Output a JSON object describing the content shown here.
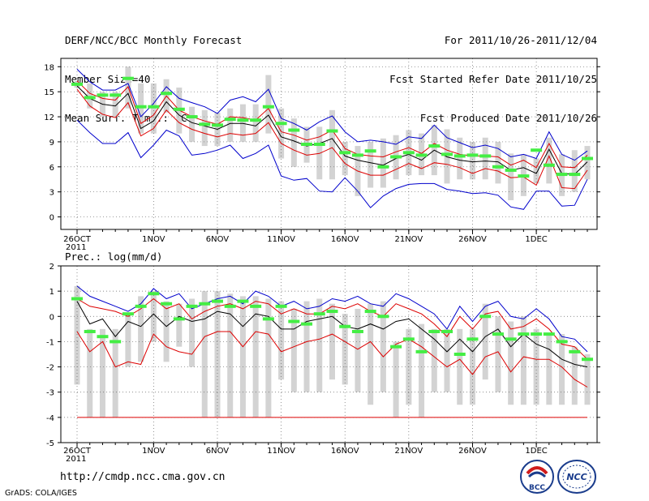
{
  "header": {
    "title": "DERF/NCC/BCC Monthly Forecast",
    "member_size": "Member Size=40",
    "variable": "Mean Surf. Temp.: °C",
    "period": "For 2011/10/26-2011/12/04",
    "fcst_started": "Fcst Started Refer Date 2011/10/25",
    "fcst_produced": "Fcst Produced Date 2011/10/26"
  },
  "footer": {
    "url": "http://cmdp.ncc.cma.gov.cn",
    "credit": "GrADS: COLA/IGES",
    "logo_bcc": "BCC",
    "logo_ncc": "NCC"
  },
  "colors": {
    "box": "#d3d3d3",
    "mean_marker": "#44ee44",
    "max_line": "#0000cc",
    "min_line": "#dd0000",
    "ensemble_line": "#000000"
  },
  "chart_data": [
    {
      "type": "line",
      "title": "Mean Surf. Temp.: °C",
      "days": 40,
      "xticks": [
        "26OCT 2011",
        "1NOV",
        "6NOV",
        "11NOV",
        "16NOV",
        "21NOV",
        "26NOV",
        "1DEC"
      ],
      "xtick_days": [
        0,
        6,
        11,
        16,
        21,
        26,
        31,
        36
      ],
      "ylim": [
        -1.5,
        19
      ],
      "yticks": [
        0,
        3,
        6,
        9,
        12,
        15,
        18
      ],
      "series": [
        {
          "name": "max",
          "values": [
            17.7,
            16.2,
            15.2,
            15.2,
            16.0,
            12.0,
            13.6,
            15.6,
            14.2,
            13.7,
            13.2,
            12.4,
            14.0,
            14.4,
            13.8,
            15.3,
            11.8,
            11.2,
            10.4,
            11.4,
            12.1,
            10.2,
            9.0,
            9.2,
            9.0,
            8.7,
            9.6,
            9.4,
            11.0,
            9.5,
            8.9,
            8.3,
            8.6,
            8.2,
            7.2,
            7.5,
            7.0,
            10.2,
            7.5,
            6.8,
            7.9
          ]
        },
        {
          "name": "upper",
          "values": [
            16.3,
            14.8,
            14.2,
            14.0,
            15.6,
            11.2,
            12.2,
            14.5,
            12.8,
            12.0,
            11.5,
            11.1,
            12.0,
            11.9,
            11.6,
            13.0,
            10.2,
            9.8,
            9.2,
            9.6,
            10.4,
            8.2,
            7.5,
            7.3,
            7.2,
            7.8,
            8.3,
            7.6,
            8.8,
            8.0,
            7.5,
            7.3,
            7.3,
            7.2,
            6.2,
            6.8,
            5.9,
            8.8,
            6.0,
            5.9,
            7.4
          ]
        },
        {
          "name": "ens_mean",
          "values": [
            15.7,
            14.2,
            13.5,
            13.3,
            14.8,
            10.6,
            11.5,
            13.8,
            12.2,
            11.3,
            10.9,
            10.5,
            11.2,
            11.2,
            10.9,
            12.2,
            9.6,
            9.1,
            8.5,
            8.8,
            9.4,
            7.3,
            6.8,
            6.5,
            6.2,
            7.0,
            7.5,
            6.8,
            8.0,
            7.2,
            6.8,
            6.6,
            6.7,
            6.6,
            5.6,
            5.9,
            5.2,
            8.1,
            5.2,
            5.1,
            6.6
          ]
        },
        {
          "name": "lower",
          "values": [
            15.3,
            13.3,
            12.3,
            11.9,
            13.7,
            9.7,
            10.6,
            12.8,
            11.3,
            10.5,
            10.0,
            9.6,
            10.0,
            9.8,
            10.0,
            11.3,
            8.8,
            8.0,
            7.4,
            7.6,
            8.3,
            6.4,
            5.5,
            5.0,
            5.0,
            5.7,
            6.4,
            5.8,
            6.5,
            6.3,
            5.9,
            5.2,
            5.8,
            5.5,
            4.7,
            4.8,
            3.8,
            7.3,
            3.5,
            3.4,
            5.6
          ]
        },
        {
          "name": "min",
          "values": [
            11.6,
            10.1,
            8.8,
            8.8,
            10.1,
            7.1,
            8.6,
            10.4,
            9.7,
            7.4,
            7.6,
            8.0,
            8.6,
            7.0,
            7.6,
            8.6,
            4.9,
            4.4,
            4.6,
            3.1,
            3.0,
            4.7,
            3.1,
            1.1,
            2.5,
            3.4,
            3.9,
            4.0,
            4.0,
            3.3,
            3.1,
            2.8,
            2.9,
            2.6,
            1.2,
            0.9,
            3.1,
            3.1,
            1.3,
            1.4,
            4.5
          ]
        },
        {
          "name": "mean_marker",
          "values": [
            15.9,
            14.3,
            14.6,
            14.6,
            16.6,
            13.2,
            13.2,
            14.8,
            12.9,
            12.0,
            11.1,
            11.0,
            11.7,
            11.6,
            11.6,
            13.2,
            11.2,
            10.4,
            8.7,
            8.7,
            10.3,
            7.7,
            7.4,
            7.9,
            6.0,
            7.2,
            7.7,
            7.4,
            8.5,
            7.5,
            7.3,
            7.4,
            7.3,
            6.0,
            5.6,
            4.9,
            8.0,
            6.2,
            5.1,
            5.1,
            7.0
          ]
        },
        {
          "name": "box_top",
          "values": [
            16.2,
            16.0,
            15.0,
            15.0,
            18.0,
            16.0,
            16.0,
            16.5,
            15.5,
            13.2,
            12.8,
            12.5,
            13.0,
            13.5,
            13.5,
            17.0,
            13.0,
            11.8,
            10.8,
            10.8,
            12.8,
            9.0,
            8.5,
            9.0,
            9.4,
            9.8,
            10.4,
            10.0,
            11.0,
            10.5,
            9.5,
            9.0,
            9.5,
            9.0,
            7.6,
            7.5,
            7.0,
            9.5,
            7.5,
            8.0,
            8.5
          ]
        },
        {
          "name": "box_bottom",
          "values": [
            15.5,
            13.0,
            12.0,
            12.0,
            13.0,
            10.0,
            10.0,
            12.5,
            10.0,
            9.0,
            8.5,
            8.5,
            9.0,
            9.0,
            9.0,
            10.0,
            7.0,
            6.0,
            6.5,
            4.5,
            4.5,
            5.0,
            2.5,
            3.5,
            3.5,
            4.5,
            5.0,
            5.0,
            5.0,
            4.0,
            4.5,
            4.5,
            4.5,
            4.0,
            2.0,
            2.5,
            4.0,
            4.0,
            2.5,
            3.0,
            4.5
          ]
        }
      ]
    },
    {
      "type": "line",
      "title": "Prec.: log(mm/d)",
      "days": 40,
      "xticks": [
        "26OCT 2011",
        "1NOV",
        "6NOV",
        "11NOV",
        "16NOV",
        "21NOV",
        "26NOV",
        "1DEC"
      ],
      "xtick_days": [
        0,
        6,
        11,
        16,
        21,
        26,
        31,
        36
      ],
      "ylim": [
        -5,
        2
      ],
      "yticks": [
        -5,
        -4,
        -3,
        -2,
        -1,
        0,
        1,
        2
      ],
      "series": [
        {
          "name": "max",
          "values": [
            1.2,
            0.8,
            0.6,
            0.4,
            0.2,
            0.5,
            1.1,
            0.7,
            0.9,
            0.3,
            0.5,
            0.7,
            0.8,
            0.5,
            1.0,
            0.8,
            0.4,
            0.6,
            0.3,
            0.4,
            0.7,
            0.6,
            0.8,
            0.5,
            0.4,
            0.9,
            0.7,
            0.4,
            0.1,
            -0.5,
            0.4,
            -0.2,
            0.4,
            0.6,
            0.0,
            -0.1,
            0.3,
            -0.1,
            -0.8,
            -0.9,
            -1.4
          ]
        },
        {
          "name": "upper",
          "values": [
            0.7,
            0.4,
            0.3,
            0.2,
            0.0,
            0.3,
            0.7,
            0.3,
            0.5,
            -0.1,
            0.2,
            0.4,
            0.5,
            0.3,
            0.6,
            0.5,
            0.1,
            0.3,
            0.1,
            0.1,
            0.4,
            0.3,
            0.5,
            0.2,
            0.0,
            0.5,
            0.3,
            0.1,
            -0.3,
            -0.8,
            0.0,
            -0.5,
            0.1,
            0.2,
            -0.5,
            -0.4,
            -0.1,
            -0.5,
            -1.1,
            -1.2,
            -1.7
          ]
        },
        {
          "name": "ens_mean",
          "values": [
            0.6,
            -0.3,
            -0.1,
            -0.8,
            -0.2,
            -0.4,
            0.1,
            -0.4,
            0.0,
            -0.2,
            -0.1,
            0.2,
            0.1,
            -0.4,
            0.1,
            0.0,
            -0.5,
            -0.5,
            -0.2,
            -0.1,
            0.0,
            -0.4,
            -0.5,
            -0.3,
            -0.5,
            -0.2,
            -0.1,
            -0.5,
            -0.9,
            -1.4,
            -0.9,
            -1.4,
            -0.8,
            -0.5,
            -1.2,
            -0.7,
            -1.1,
            -1.3,
            -1.7,
            -1.9,
            -2.0
          ]
        },
        {
          "name": "lower",
          "values": [
            -0.6,
            -1.4,
            -1.0,
            -2.0,
            -1.8,
            -1.9,
            -0.7,
            -1.2,
            -1.4,
            -1.5,
            -0.8,
            -0.6,
            -0.6,
            -1.2,
            -0.6,
            -0.7,
            -1.4,
            -1.2,
            -1.0,
            -0.9,
            -0.7,
            -1.0,
            -1.3,
            -1.0,
            -1.6,
            -1.1,
            -0.9,
            -1.2,
            -1.6,
            -2.0,
            -1.7,
            -2.3,
            -1.6,
            -1.4,
            -2.2,
            -1.6,
            -1.7,
            -1.7,
            -2.0,
            -2.5,
            -2.8
          ]
        },
        {
          "name": "min",
          "values": [
            -4,
            -4,
            -4,
            -4,
            -4,
            -4,
            -4,
            -4,
            -4,
            -4,
            -4,
            -4,
            -4,
            -4,
            -4,
            -4,
            -4,
            -4,
            -4,
            -4,
            -4,
            -4,
            -4,
            -4,
            -4,
            -4,
            -4,
            -4,
            -4,
            -4,
            -4,
            -4,
            -4,
            -4,
            -4,
            -4,
            -4,
            -4,
            -4,
            -4,
            -4
          ]
        },
        {
          "name": "mean_marker",
          "values": [
            0.7,
            -0.6,
            -0.8,
            -1.0,
            0.1,
            0.4,
            0.9,
            0.5,
            -0.1,
            0.4,
            0.5,
            0.6,
            0.4,
            0.6,
            0.4,
            -0.1,
            0.4,
            -0.2,
            -0.3,
            0.1,
            0.2,
            -0.4,
            -0.6,
            0.2,
            0.0,
            -1.2,
            -0.9,
            -1.4,
            -0.6,
            -0.6,
            -1.5,
            -0.9,
            0.0,
            -0.7,
            -0.9,
            -0.7,
            -0.7,
            -0.7,
            -1.0,
            -1.4,
            -1.7
          ]
        },
        {
          "name": "box_top",
          "values": [
            1.2,
            -0.5,
            -0.5,
            -0.5,
            0.1,
            0.8,
            1.0,
            0.6,
            0.5,
            0.7,
            1.0,
            1.0,
            0.9,
            0.8,
            0.8,
            0.7,
            0.6,
            0.3,
            0.6,
            0.7,
            0.5,
            0.1,
            0.3,
            0.5,
            0.6,
            -1.0,
            -0.5,
            -0.3,
            -0.5,
            -0.5,
            -0.5,
            -0.5,
            0.5,
            0.0,
            -0.2,
            0.0,
            -0.5,
            -0.7,
            -0.7,
            -1.2,
            -1.5
          ]
        },
        {
          "name": "box_bottom",
          "values": [
            -2.7,
            -4.0,
            -4.0,
            -4.0,
            -2.0,
            -1.8,
            -1.0,
            -1.8,
            -1.2,
            -2.0,
            -4.0,
            -4.0,
            -4.0,
            -4.0,
            -4.0,
            -4.0,
            -2.5,
            -3.0,
            -3.0,
            -3.0,
            -2.5,
            -2.7,
            -3.0,
            -3.5,
            -3.0,
            -4.0,
            -3.5,
            -4.0,
            -3.0,
            -3.0,
            -3.5,
            -3.5,
            -2.5,
            -3.0,
            -3.5,
            -3.5,
            -3.5,
            -3.5,
            -3.5,
            -3.5,
            -3.5
          ]
        }
      ]
    }
  ]
}
